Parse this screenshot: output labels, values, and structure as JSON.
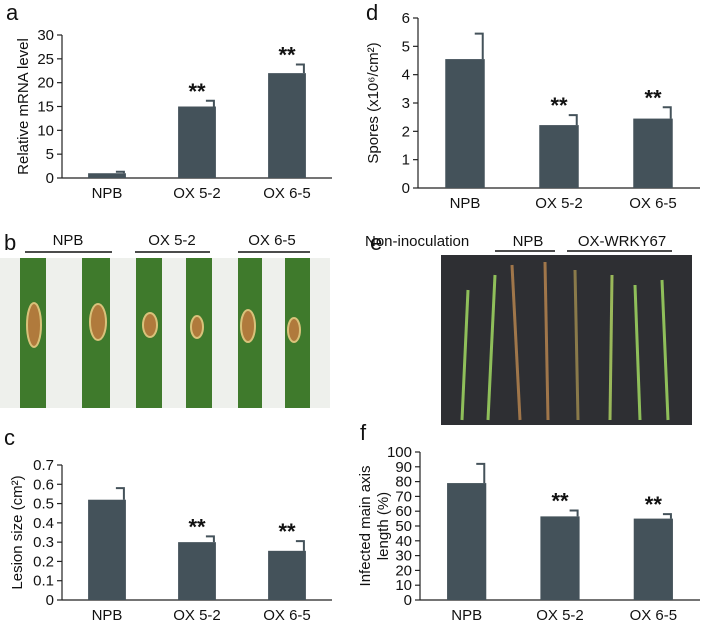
{
  "panels": {
    "a": "a",
    "b": "b",
    "c": "c",
    "d": "d",
    "e": "e",
    "f": "f"
  },
  "photo_b": {
    "labels": [
      "NPB",
      "OX 5-2",
      "OX 6-5"
    ]
  },
  "photo_e": {
    "labels": [
      "Non-inoculation",
      "NPB",
      "OX-WRKY67"
    ]
  },
  "chart_data": [
    {
      "type": "bar",
      "ylabel": [
        "Relative mRNA level"
      ],
      "categories": [
        "NPB",
        "OX 5-2",
        "OX 6-5"
      ],
      "values": [
        1,
        15,
        22
      ],
      "errors": [
        0.3,
        1.2,
        1.8
      ],
      "significance": [
        null,
        "**",
        "**"
      ],
      "color": "#44525a",
      "ylim": [
        0,
        30
      ],
      "yticks": [
        0,
        5,
        10,
        15,
        20,
        25,
        30
      ]
    },
    {
      "type": "bar",
      "ylabel": [
        "Spores (x10⁶/cm²)"
      ],
      "categories": [
        "NPB",
        "OX 5-2",
        "OX 6-5"
      ],
      "values": [
        4.55,
        2.22,
        2.45
      ],
      "errors": [
        0.9,
        0.35,
        0.4
      ],
      "significance": [
        null,
        "**",
        "**"
      ],
      "color": "#44525a",
      "ylim": [
        0,
        6
      ],
      "yticks": [
        0,
        1,
        2,
        3,
        4,
        5,
        6
      ]
    },
    {
      "type": "bar",
      "ylabel": [
        "Lesion size (cm²)"
      ],
      "categories": [
        "NPB",
        "OX 5-2",
        "OX 6-5"
      ],
      "values": [
        0.52,
        0.3,
        0.255
      ],
      "errors": [
        0.06,
        0.03,
        0.05
      ],
      "significance": [
        null,
        "**",
        "**"
      ],
      "color": "#44525a",
      "ylim": [
        0,
        0.7
      ],
      "yticks": [
        0,
        0.1,
        0.2,
        0.3,
        0.4,
        0.5,
        0.6,
        0.7
      ]
    },
    {
      "type": "bar",
      "ylabel": [
        "Infected main axis",
        "length (%)"
      ],
      "categories": [
        "NPB",
        "OX 5-2",
        "OX 6-5"
      ],
      "values": [
        79,
        56.5,
        55
      ],
      "errors": [
        13,
        4,
        3
      ],
      "significance": [
        null,
        "**",
        "**"
      ],
      "color": "#44525a",
      "ylim": [
        0,
        100
      ],
      "yticks": [
        0,
        10,
        20,
        30,
        40,
        50,
        60,
        70,
        80,
        90,
        100
      ]
    }
  ]
}
